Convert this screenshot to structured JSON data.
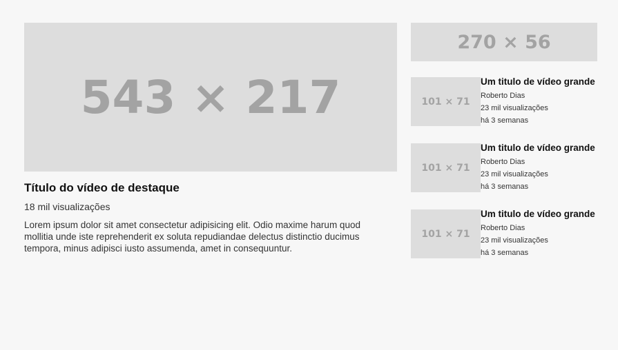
{
  "featured": {
    "thumbnail_label": "543 × 217",
    "title": "Título do vídeo de destaque",
    "views": "18 mil visualizações",
    "description": "Lorem ipsum dolor sit amet consectetur adipisicing elit. Odio maxime harum quod mollitia unde iste reprehenderit ex soluta repudiandae delectus distinctio ducimus tempora, minus adipisci iusto assumenda, amet in consequuntur."
  },
  "sidebar": {
    "banner_label": "270 × 56",
    "videos": [
      {
        "thumbnail_label": "101 × 71",
        "title": "Um titulo de vídeo grande",
        "author": "Roberto Dias",
        "views": "23 mil visualizações",
        "age": "há 3 semanas"
      },
      {
        "thumbnail_label": "101 × 71",
        "title": "Um titulo de vídeo grande",
        "author": "Roberto Dias",
        "views": "23 mil visualizações",
        "age": "há 3 semanas"
      },
      {
        "thumbnail_label": "101 × 71",
        "title": "Um titulo de vídeo grande",
        "author": "Roberto Dias",
        "views": "23 mil visualizações",
        "age": "há 3 semanas"
      }
    ]
  },
  "colors": {
    "background": "#f7f7f7",
    "placeholder_bg": "#dddddd",
    "placeholder_text": "#a3a3a3"
  }
}
